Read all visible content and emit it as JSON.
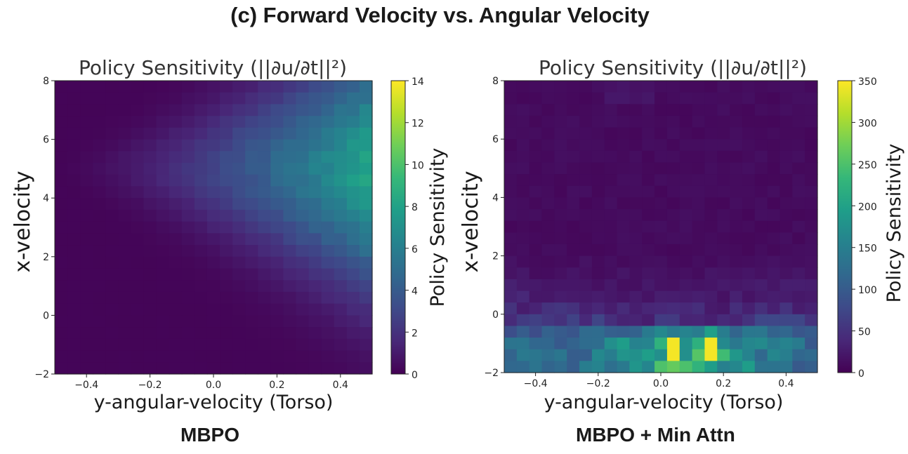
{
  "figure": {
    "title": "(c) Forward Velocity vs. Angular Velocity",
    "captions": [
      "MBPO",
      "MBPO + Min Attn"
    ]
  },
  "colormap": [
    "#440154",
    "#482878",
    "#3e4a89",
    "#31688e",
    "#26828e",
    "#1f9e89",
    "#35b779",
    "#6ece58",
    "#b5de2b",
    "#fde725"
  ],
  "chart_data": [
    {
      "type": "heatmap",
      "title": "Policy Sensitivity (||∂u/∂t||²)",
      "xlabel": "y-angular-velocity (Torso)",
      "ylabel": "x-velocity",
      "xlim": [
        -0.5,
        0.5
      ],
      "ylim": [
        -2,
        8
      ],
      "xticks": [
        -0.4,
        -0.2,
        0.0,
        0.2,
        0.4
      ],
      "xtick_labels": [
        "−0.4",
        "−0.2",
        "0.0",
        "0.2",
        "0.4"
      ],
      "yticks": [
        -2,
        0,
        2,
        4,
        6,
        8
      ],
      "ytick_labels": [
        "−2",
        "0",
        "2",
        "4",
        "6",
        "8"
      ],
      "grid_cols": 25,
      "grid_rows": 25,
      "model": "smooth",
      "colorbar": {
        "label": "Policy Sensitivity",
        "min": 0,
        "max": 14,
        "ticks": [
          0,
          2,
          4,
          6,
          8,
          10,
          12,
          14
        ]
      }
    },
    {
      "type": "heatmap",
      "title": "Policy Sensitivity (||∂u/∂t||²)",
      "xlabel": "y-angular-velocity (Torso)",
      "ylabel": "x-velocity",
      "xlim": [
        -0.5,
        0.5
      ],
      "ylim": [
        -2,
        8
      ],
      "xticks": [
        -0.4,
        -0.2,
        0.0,
        0.2,
        0.4
      ],
      "xtick_labels": [
        "−0.4",
        "−0.2",
        "0.0",
        "0.2",
        "0.4"
      ],
      "yticks": [
        -2,
        0,
        2,
        4,
        6,
        8
      ],
      "ytick_labels": [
        "−2",
        "0",
        "2",
        "4",
        "6",
        "8"
      ],
      "grid_cols": 25,
      "grid_rows": 25,
      "model": "band",
      "colorbar": {
        "label": "Policy Sensitivity",
        "min": 0,
        "max": 350,
        "ticks": [
          0,
          50,
          100,
          150,
          200,
          250,
          300,
          350
        ]
      }
    }
  ]
}
